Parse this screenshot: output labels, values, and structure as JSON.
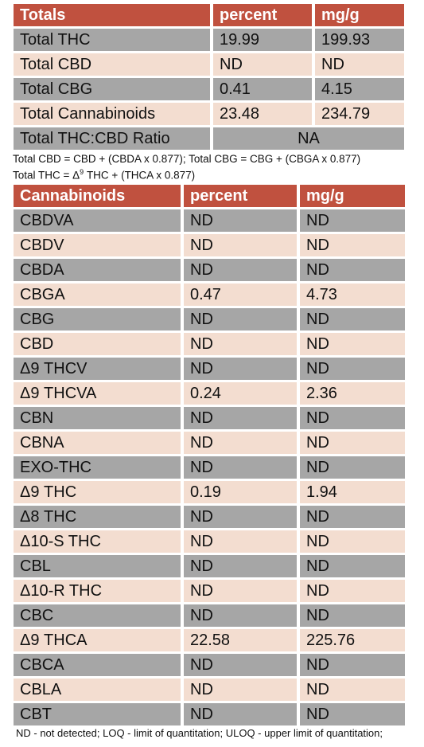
{
  "totals": {
    "headers": [
      "Totals",
      "percent",
      "mg/g"
    ],
    "rows": [
      {
        "name": "Total THC",
        "percent": "19.99",
        "mgg": "199.93"
      },
      {
        "name": "Total CBD",
        "percent": "ND",
        "mgg": "ND"
      },
      {
        "name": "Total CBG",
        "percent": "0.41",
        "mgg": "4.15"
      },
      {
        "name": "Total Cannabinoids",
        "percent": "23.48",
        "mgg": "234.79"
      }
    ],
    "ratio": {
      "name": "Total THC:CBD Ratio",
      "value": "NA"
    }
  },
  "notes": {
    "formula1": "Total CBD = CBD + (CBDA x 0.877); Total CBG = CBG + (CBGA x 0.877)",
    "formula2_pre": "Total THC = Δ",
    "formula2_sup": "9",
    "formula2_post": " THC + (THCA x 0.877)",
    "legend": "ND - not detected; LOQ - limit of quantitation; ULOQ - upper limit of quantitation;"
  },
  "cannabinoids": {
    "headers": [
      "Cannabinoids",
      "percent",
      "mg/g"
    ],
    "rows": [
      {
        "name": "CBDVA",
        "percent": "ND",
        "mgg": "ND"
      },
      {
        "name": "CBDV",
        "percent": "ND",
        "mgg": "ND"
      },
      {
        "name": "CBDA",
        "percent": "ND",
        "mgg": "ND"
      },
      {
        "name": "CBGA",
        "percent": "0.47",
        "mgg": "4.73"
      },
      {
        "name": "CBG",
        "percent": "ND",
        "mgg": "ND"
      },
      {
        "name": "CBD",
        "percent": "ND",
        "mgg": "ND"
      },
      {
        "name": "Δ9 THCV",
        "percent": "ND",
        "mgg": "ND"
      },
      {
        "name": "Δ9 THCVA",
        "percent": "0.24",
        "mgg": "2.36"
      },
      {
        "name": "CBN",
        "percent": "ND",
        "mgg": "ND"
      },
      {
        "name": "CBNA",
        "percent": "ND",
        "mgg": "ND"
      },
      {
        "name": "EXO-THC",
        "percent": "ND",
        "mgg": "ND"
      },
      {
        "name": "Δ9 THC",
        "percent": "0.19",
        "mgg": "1.94"
      },
      {
        "name": "Δ8 THC",
        "percent": "ND",
        "mgg": "ND"
      },
      {
        "name": "Δ10-S THC",
        "percent": "ND",
        "mgg": "ND"
      },
      {
        "name": "CBL",
        "percent": "ND",
        "mgg": "ND"
      },
      {
        "name": "Δ10-R THC",
        "percent": "ND",
        "mgg": "ND"
      },
      {
        "name": "CBC",
        "percent": "ND",
        "mgg": "ND"
      },
      {
        "name": "Δ9 THCA",
        "percent": "22.58",
        "mgg": "225.76"
      },
      {
        "name": "CBCA",
        "percent": "ND",
        "mgg": "ND"
      },
      {
        "name": "CBLA",
        "percent": "ND",
        "mgg": "ND"
      },
      {
        "name": "CBT",
        "percent": "ND",
        "mgg": "ND"
      }
    ]
  },
  "colors": {
    "header": "#c0513f",
    "row_grey": "#a6a6a6",
    "row_peach": "#f3ddd0"
  }
}
